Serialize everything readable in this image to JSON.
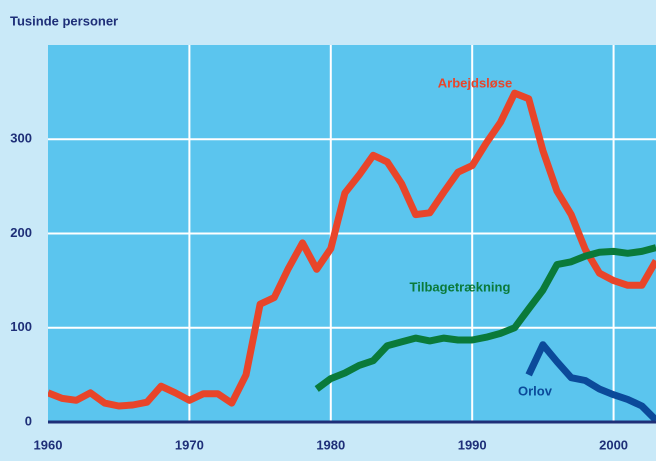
{
  "chart_data": {
    "type": "line",
    "y_label": "Tusinde personer",
    "x": [
      1960,
      1961,
      1962,
      1963,
      1964,
      1965,
      1966,
      1967,
      1968,
      1969,
      1970,
      1971,
      1972,
      1973,
      1974,
      1975,
      1976,
      1977,
      1978,
      1979,
      1980,
      1981,
      1982,
      1983,
      1984,
      1985,
      1986,
      1987,
      1988,
      1989,
      1990,
      1991,
      1992,
      1993,
      1994,
      1995,
      1996,
      1997,
      1998,
      1999,
      2000,
      2001,
      2002,
      2003
    ],
    "series": [
      {
        "name": "Arbejdsløse",
        "color": "#e8452a",
        "values": [
          31,
          25,
          23,
          31,
          20,
          17,
          18,
          21,
          38,
          31,
          23,
          30,
          30,
          20,
          50,
          125,
          132,
          163,
          190,
          162,
          184,
          243,
          262,
          283,
          276,
          253,
          220,
          222,
          244,
          265,
          272,
          296,
          318,
          349,
          343,
          288,
          245,
          220,
          183,
          158,
          150,
          145,
          145,
          171
        ]
      },
      {
        "name": "Tilbagetrækning",
        "color": "#0a7a3a",
        "values": [
          null,
          null,
          null,
          null,
          null,
          null,
          null,
          null,
          null,
          null,
          null,
          null,
          null,
          null,
          null,
          null,
          null,
          null,
          null,
          35,
          46,
          52,
          60,
          65,
          81,
          85,
          89,
          86,
          89,
          87,
          87,
          90,
          94,
          100,
          120,
          140,
          167,
          170,
          176,
          180,
          181,
          179,
          181,
          185
        ]
      },
      {
        "name": "Orlov",
        "color": "#0b4a9a",
        "values": [
          null,
          null,
          null,
          null,
          null,
          null,
          null,
          null,
          null,
          null,
          null,
          null,
          null,
          null,
          null,
          null,
          null,
          null,
          null,
          null,
          null,
          null,
          null,
          null,
          null,
          null,
          null,
          null,
          null,
          null,
          null,
          null,
          null,
          null,
          50,
          82,
          64,
          47,
          44,
          35,
          29,
          24,
          17,
          2
        ]
      }
    ],
    "xlim": [
      1960,
      2003
    ],
    "xticks": [
      1960,
      1970,
      1980,
      1990,
      2000
    ],
    "ylim": [
      0,
      400
    ],
    "yticks": [
      0,
      100,
      200,
      300
    ],
    "grid": true
  }
}
